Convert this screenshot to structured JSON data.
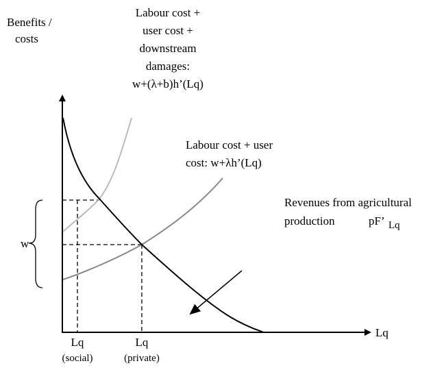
{
  "axis_labels": {
    "y": [
      "Benefits /",
      "costs"
    ],
    "x": "Lq"
  },
  "curves": [
    {
      "label": [
        "Labour cost +",
        "user cost +",
        "downstream",
        "damages:",
        "w+(λ+b)h’(Lq)"
      ]
    },
    {
      "label": [
        "Labour cost + user",
        "cost: w+λh’(Lq)"
      ]
    },
    {
      "label": [
        "Revenues from agricultural",
        "production"
      ],
      "formula": "pF’",
      "subscript": "Lq"
    }
  ],
  "w_label": "w",
  "x_markers": [
    {
      "label": "Lq",
      "note": "(social)"
    },
    {
      "label": "Lq",
      "note": "(private)"
    }
  ]
}
